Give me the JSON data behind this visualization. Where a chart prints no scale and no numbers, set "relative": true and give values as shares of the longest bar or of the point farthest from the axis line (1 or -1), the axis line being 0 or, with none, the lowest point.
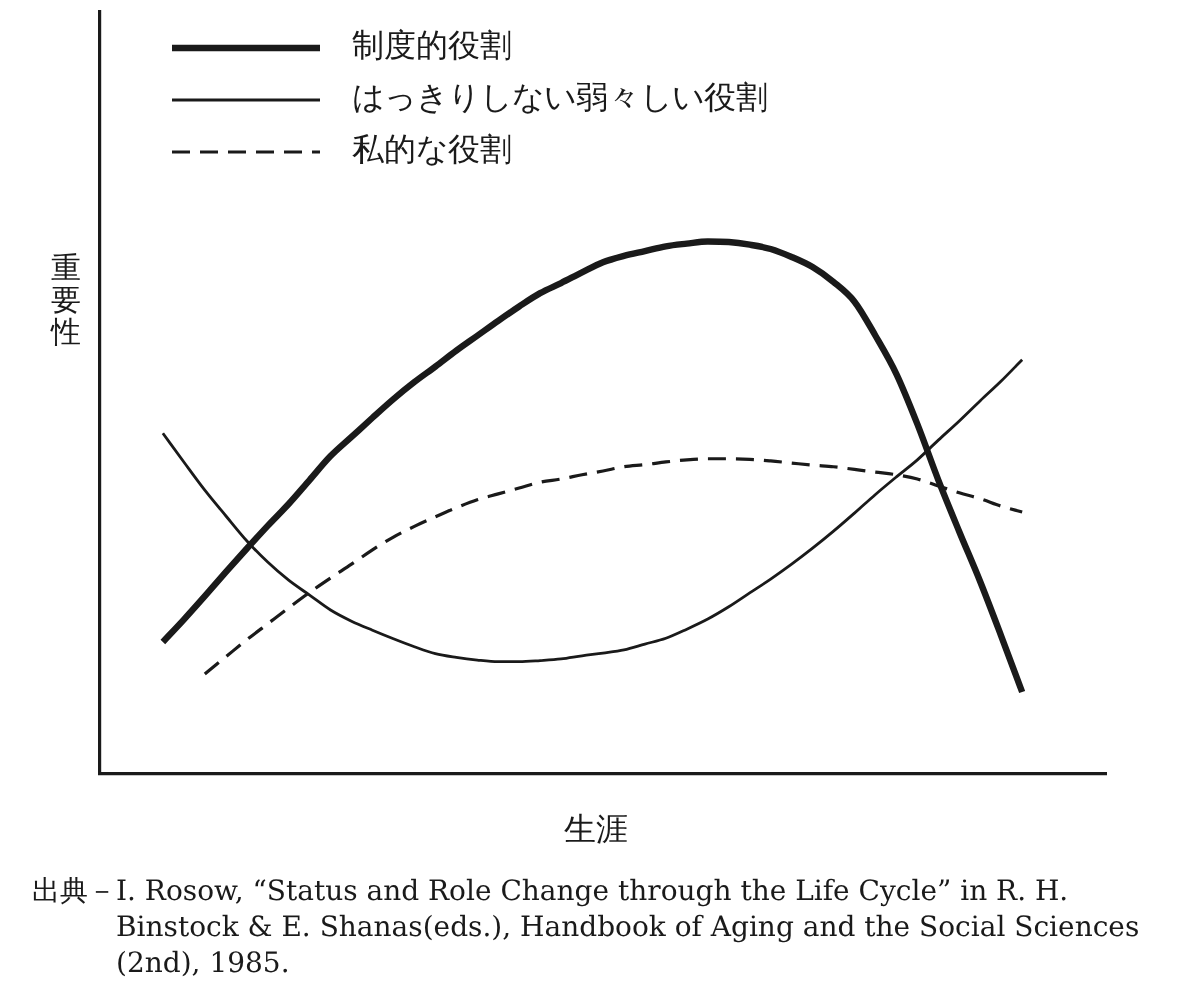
{
  "chart_data": {
    "type": "line",
    "relative": true,
    "xlabel": "生涯",
    "ylabel": "重要性",
    "legend": "top left",
    "annotations": [
      "出典－I. Rosow, “Status and Role Change through the Life Cycle” in R. H. Binstock & E. Shanas(eds.), Handbook of Aging and the Social Sciences (2nd), 1985."
    ],
    "categories": [
      null,
      null,
      null,
      null,
      null,
      null,
      null,
      null,
      null,
      null,
      null,
      null,
      null,
      null,
      null,
      null,
      null,
      null,
      null,
      null,
      null,
      null,
      null,
      null,
      null,
      null,
      null,
      null,
      null,
      null,
      null,
      null,
      null,
      null,
      null,
      null,
      null,
      null,
      null,
      null,
      null,
      null,
      null,
      null,
      null,
      null,
      null,
      null,
      null
    ],
    "series": [
      {
        "name": "制度的役割",
        "color": "#1a1a1a",
        "line_style": "solid",
        "values": [
          null,
          null,
          null,
          0.248,
          0.29,
          0.334,
          0.379,
          0.423,
          0.466,
          0.507,
          0.552,
          0.597,
          0.633,
          0.669,
          0.704,
          0.736,
          0.765,
          0.795,
          0.823,
          0.851,
          0.878,
          0.903,
          0.922,
          0.942,
          0.961,
          0.973,
          0.982,
          0.991,
          0.996,
          1,
          0.999,
          0.994,
          0.986,
          0.971,
          0.952,
          0.924,
          0.887,
          0.823,
          0.751,
          0.657,
          0.552,
          0.455,
          0.361,
          0.259,
          0.154,
          null,
          null,
          null,
          null
        ]
      },
      {
        "name": "はっきりしない弱々しい役割",
        "color": "#1a1a1a",
        "line_style": "solid",
        "values": [
          null,
          null,
          null,
          0.64,
          0.586,
          0.533,
          0.485,
          0.438,
          0.398,
          0.364,
          0.336,
          0.308,
          0.287,
          0.27,
          0.254,
          0.239,
          0.226,
          0.219,
          0.214,
          0.211,
          0.211,
          0.213,
          0.216,
          0.222,
          0.227,
          0.233,
          0.244,
          0.255,
          0.272,
          0.291,
          0.314,
          0.34,
          0.366,
          0.394,
          0.424,
          0.456,
          0.49,
          0.525,
          0.558,
          0.59,
          0.627,
          0.663,
          0.701,
          0.738,
          0.778,
          null,
          null,
          null,
          null
        ]
      },
      {
        "name": "私的な役割",
        "color": "#1a1a1a",
        "line_style": "dashed",
        "values": [
          null,
          null,
          null,
          null,
          null,
          0.188,
          0.22,
          0.252,
          0.282,
          0.312,
          0.341,
          0.368,
          0.394,
          0.421,
          0.445,
          0.465,
          0.483,
          0.5,
          0.515,
          0.526,
          0.537,
          0.548,
          0.554,
          0.562,
          0.569,
          0.577,
          0.581,
          0.586,
          0.59,
          0.592,
          0.592,
          0.591,
          0.588,
          0.584,
          0.58,
          0.577,
          0.572,
          0.567,
          0.562,
          0.554,
          0.541,
          0.528,
          0.517,
          0.503,
          0.492,
          null,
          null,
          null,
          null
        ]
      }
    ]
  }
}
